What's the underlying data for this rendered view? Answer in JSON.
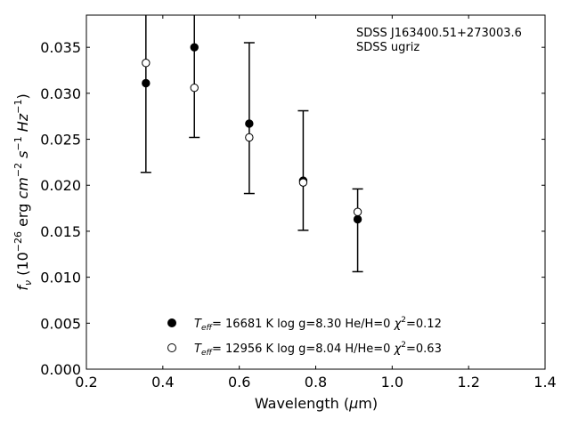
{
  "chart_data": {
    "type": "scatter",
    "title": "",
    "annotation": {
      "line1": "SDSS J163400.51+273003.6",
      "line2": "SDSS ugriz"
    },
    "xlabel": {
      "main": "Wavelength (",
      "mu": "μ",
      "tail": "m)"
    },
    "ylabel": {
      "f": "f",
      "nu": "ν",
      "open": " (10",
      "exp1": "−26",
      "erg": " erg ",
      "cm": "cm",
      "exp2": "−2",
      "s": " s",
      "exp3": "−1",
      "hz": " Hz",
      "exp4": "−1",
      "close": ")"
    },
    "xlim": [
      0.2,
      1.4
    ],
    "ylim": [
      0.0,
      0.0385
    ],
    "xticks": [
      0.2,
      0.4,
      0.6,
      0.8,
      1.0,
      1.2,
      1.4
    ],
    "xtick_labels": [
      "0.2",
      "0.4",
      "0.6",
      "0.8",
      "1.0",
      "1.2",
      "1.4"
    ],
    "yticks": [
      0.0,
      0.005,
      0.01,
      0.015,
      0.02,
      0.025,
      0.03,
      0.035
    ],
    "ytick_labels": [
      "0.000",
      "0.005",
      "0.010",
      "0.015",
      "0.020",
      "0.025",
      "0.030",
      "0.035"
    ],
    "grid": false,
    "legend_position": "bottom-center",
    "colors": {
      "filled": "#000000",
      "open_fill": "#ffffff",
      "edge": "#000000"
    },
    "errorbars": [
      {
        "x": 0.3557,
        "low": 0.0214,
        "high": 0.042
      },
      {
        "x": 0.4825,
        "low": 0.0252,
        "high": 0.0395
      },
      {
        "x": 0.6261,
        "low": 0.0191,
        "high": 0.0355
      },
      {
        "x": 0.7672,
        "low": 0.0151,
        "high": 0.0281
      },
      {
        "x": 0.9097,
        "low": 0.0106,
        "high": 0.0196
      }
    ],
    "series": [
      {
        "marker": "filled",
        "legend": {
          "teff_T": "T",
          "teff_sub": "eff",
          "rest": "= 16681 K  log g=8.30  He/H=0  ",
          "chi": "χ",
          "chi_sup": "2",
          "chi_val": "=0.12"
        },
        "x": [
          0.3557,
          0.4825,
          0.6261,
          0.7672,
          0.9097
        ],
        "y": [
          0.0311,
          0.035,
          0.0267,
          0.0205,
          0.0163
        ]
      },
      {
        "marker": "open",
        "legend": {
          "teff_T": "T",
          "teff_sub": "eff",
          "rest": "= 12956 K  log g=8.04  H/He=0  ",
          "chi": "χ",
          "chi_sup": "2",
          "chi_val": "=0.63"
        },
        "x": [
          0.3557,
          0.4825,
          0.6261,
          0.7672,
          0.9097
        ],
        "y": [
          0.0333,
          0.0306,
          0.0252,
          0.0203,
          0.0171
        ]
      }
    ]
  }
}
